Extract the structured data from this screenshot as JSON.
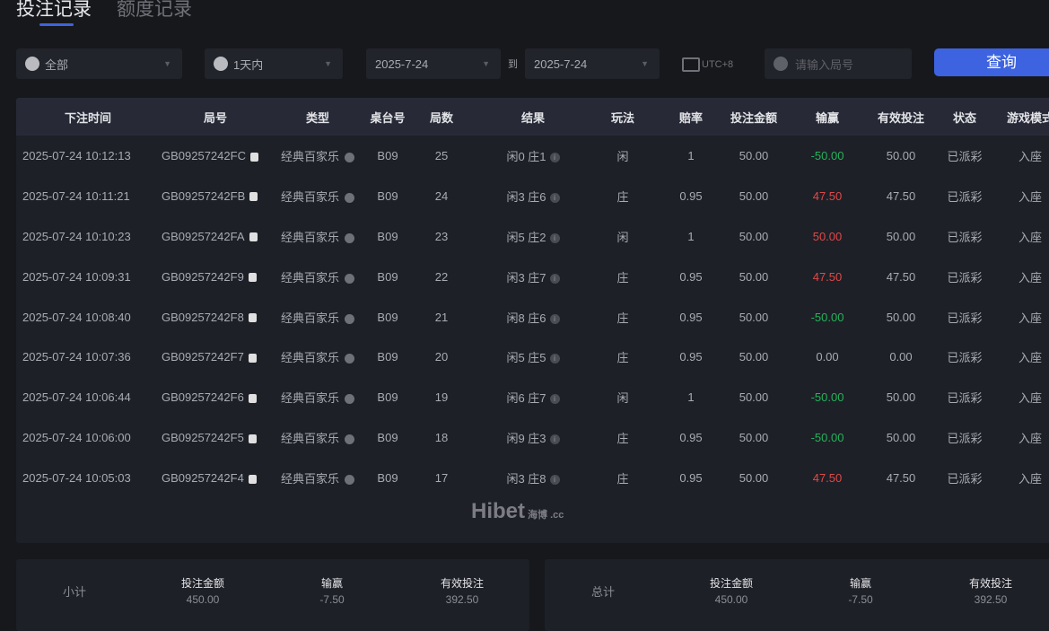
{
  "tabs": [
    {
      "label": "投注记录",
      "active": true
    },
    {
      "label": "额度记录",
      "active": false
    }
  ],
  "filters": {
    "category": "全部",
    "period": "1天内",
    "date_from": "2025-7-24",
    "to_label": "到",
    "date_to": "2025-7-24",
    "timezone": "UTC+8",
    "search_placeholder": "请输入局号",
    "query_button": "查询"
  },
  "table": {
    "headers": [
      "下注时间",
      "局号",
      "类型",
      "桌台号",
      "局数",
      "结果",
      "玩法",
      "赔率",
      "投注金额",
      "输赢",
      "有效投注",
      "状态",
      "游戏模式"
    ],
    "rows": [
      [
        "2025-07-24 10:12:13",
        "GB09257242FC",
        "经典百家乐",
        "B09",
        "25",
        "闲0 庄1",
        "闲",
        "1",
        "50.00",
        "-50.00",
        "50.00",
        "已派彩",
        "入座"
      ],
      [
        "2025-07-24 10:11:21",
        "GB09257242FB",
        "经典百家乐",
        "B09",
        "24",
        "闲3 庄6",
        "庄",
        "0.95",
        "50.00",
        "47.50",
        "47.50",
        "已派彩",
        "入座"
      ],
      [
        "2025-07-24 10:10:23",
        "GB09257242FA",
        "经典百家乐",
        "B09",
        "23",
        "闲5 庄2",
        "闲",
        "1",
        "50.00",
        "50.00",
        "50.00",
        "已派彩",
        "入座"
      ],
      [
        "2025-07-24 10:09:31",
        "GB09257242F9",
        "经典百家乐",
        "B09",
        "22",
        "闲3 庄7",
        "庄",
        "0.95",
        "50.00",
        "47.50",
        "47.50",
        "已派彩",
        "入座"
      ],
      [
        "2025-07-24 10:08:40",
        "GB09257242F8",
        "经典百家乐",
        "B09",
        "21",
        "闲8 庄6",
        "庄",
        "0.95",
        "50.00",
        "-50.00",
        "50.00",
        "已派彩",
        "入座"
      ],
      [
        "2025-07-24 10:07:36",
        "GB09257242F7",
        "经典百家乐",
        "B09",
        "20",
        "闲5 庄5",
        "庄",
        "0.95",
        "50.00",
        "0.00",
        "0.00",
        "已派彩",
        "入座"
      ],
      [
        "2025-07-24 10:06:44",
        "GB09257242F6",
        "经典百家乐",
        "B09",
        "19",
        "闲6 庄7",
        "闲",
        "1",
        "50.00",
        "-50.00",
        "50.00",
        "已派彩",
        "入座"
      ],
      [
        "2025-07-24 10:06:00",
        "GB09257242F5",
        "经典百家乐",
        "B09",
        "18",
        "闲9 庄3",
        "庄",
        "0.95",
        "50.00",
        "-50.00",
        "50.00",
        "已派彩",
        "入座"
      ],
      [
        "2025-07-24 10:05:03",
        "GB09257242F4",
        "经典百家乐",
        "B09",
        "17",
        "闲3 庄8",
        "庄",
        "0.95",
        "50.00",
        "47.50",
        "47.50",
        "已派彩",
        "入座"
      ]
    ]
  },
  "watermark": "Hibet 海博 .cc",
  "subtotal": {
    "label": "小计",
    "bet_label": "投注金额",
    "bet": "450.00",
    "win_label": "输赢",
    "win": "-7.50",
    "valid_label": "有效投注",
    "valid": "392.50"
  },
  "total": {
    "label": "总计",
    "bet_label": "投注金额",
    "bet": "450.00",
    "win_label": "输赢",
    "win": "-7.50",
    "valid_label": "有效投注",
    "valid": "392.50"
  },
  "colors": {
    "accent": "#3d63e0",
    "loss": "#23b35a",
    "win": "#e04848"
  }
}
